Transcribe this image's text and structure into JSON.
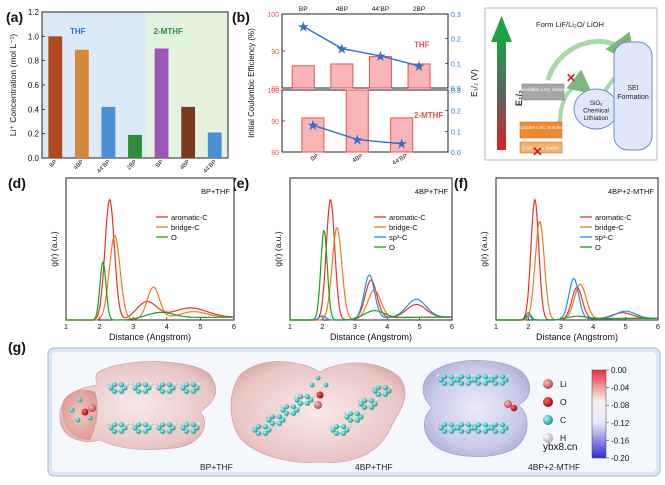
{
  "panel_letters": [
    "(a)",
    "(b)",
    "(c)",
    "(d)",
    "(e)",
    "(f)",
    "(g)"
  ],
  "colors": {
    "brown": "#b04a1e",
    "orange": "#d4883a",
    "blue": "#4a8fd6",
    "green": "#2e8b3a",
    "purple": "#9a57b8",
    "darkbrown": "#7a3a22",
    "red_bar": "#f05050",
    "pink_bar": "#f7a0a0",
    "line_blue": "#2f6fd0",
    "aromatic": "#ee2f2f",
    "bridge": "#f07a1a",
    "sp3": "#1f8fe0",
    "O": "#1aa01a",
    "panel_bg_blue": "#dceaf8",
    "panel_bg_green": "#e4f2e0"
  },
  "chart_data": [
    {
      "id": "a",
      "type": "bar",
      "ylabel": "Li⁺ Concentration (mol L⁻¹)",
      "ylim": [
        0,
        1.2
      ],
      "yticks": [
        "0.0",
        "0.2",
        "0.4",
        "0.6",
        "0.8",
        "1.0",
        "1.2"
      ],
      "groups": [
        {
          "label": "THF"
        },
        {
          "label": "2-MTHF"
        }
      ],
      "categories": [
        "BP",
        "4BP",
        "44’BP",
        "2BP",
        "BP",
        "4BP",
        "44’BP"
      ],
      "values": [
        1.0,
        0.89,
        0.42,
        0.19,
        0.9,
        0.42,
        0.21
      ]
    },
    {
      "id": "b",
      "type": "bar+line",
      "ylabel": "Initial Coulombic Efficiency (%)",
      "y2label": "E₁/₂ (V)",
      "categories_top": [
        "BP",
        "4BP",
        "44’BP",
        "2BP"
      ],
      "categories_bottom": [
        "BP",
        "4BP",
        "44’BP"
      ],
      "top": {
        "label": "THF",
        "ylim": [
          80,
          100
        ],
        "yticks": [
          "80",
          "90",
          "100"
        ],
        "bars": [
          86,
          86.5,
          88.5,
          86.5
        ],
        "y2lim": [
          0,
          0.3
        ],
        "y2ticks": [
          "0.0",
          "0.1",
          "0.2",
          "0.3"
        ],
        "line": [
          0.25,
          0.16,
          0.13,
          0.09
        ]
      },
      "bottom": {
        "label": "2-MTHF",
        "ylim": [
          80,
          100
        ],
        "yticks": [
          "80",
          "90",
          "100"
        ],
        "bars": [
          91,
          102,
          91
        ],
        "y2lim": [
          0,
          0.3
        ],
        "y2ticks": [
          "0.0",
          "0.1",
          "0.2",
          "0.3"
        ],
        "line": [
          0.13,
          0.06,
          0.04
        ]
      }
    },
    {
      "id": "d",
      "type": "line",
      "title": "BP+THF",
      "xlabel": "Distance (Angstrom)",
      "ylabel": "g(r) (a.u.)",
      "xlim": [
        1,
        6
      ],
      "xticks": [
        "1",
        "2",
        "3",
        "4",
        "5",
        "6"
      ],
      "series": [
        {
          "name": "aromatic-C",
          "peaks": [
            [
              2.3,
              25,
              0.14
            ],
            [
              3.4,
              3.5,
              0.3
            ],
            [
              4.7,
              2.0,
              0.5
            ]
          ]
        },
        {
          "name": "bridge-C",
          "peaks": [
            [
              2.45,
              17.5,
              0.16
            ],
            [
              3.6,
              6.5,
              0.18
            ],
            [
              4.8,
              1.2,
              0.4
            ]
          ]
        },
        {
          "name": "O",
          "peaks": [
            [
              2.1,
              12,
              0.09
            ],
            [
              3.8,
              1.2,
              0.4
            ]
          ]
        }
      ]
    },
    {
      "id": "e",
      "type": "line",
      "title": "4BP+THF",
      "xlabel": "Distance (Angstrom)",
      "ylabel": "g(r) (a.u.)",
      "xlim": [
        1,
        6
      ],
      "xticks": [
        "1",
        "2",
        "3",
        "4",
        "5",
        "6"
      ],
      "series": [
        {
          "name": "aromatic-C",
          "peaks": [
            [
              2.25,
              23.5,
              0.13
            ],
            [
              3.5,
              7.5,
              0.18
            ],
            [
              4.9,
              2.5,
              0.3
            ]
          ]
        },
        {
          "name": "bridge-C",
          "peaks": [
            [
              2.45,
              18,
              0.15
            ],
            [
              3.6,
              5.5,
              0.2
            ]
          ]
        },
        {
          "name": "sp³-C",
          "peaks": [
            [
              2.0,
              0.8,
              0.1
            ],
            [
              3.45,
              8.5,
              0.16
            ],
            [
              4.9,
              3.5,
              0.3
            ]
          ]
        },
        {
          "name": "O",
          "peaks": [
            [
              2.05,
              17.5,
              0.1
            ],
            [
              3.6,
              1.5,
              0.3
            ]
          ]
        }
      ]
    },
    {
      "id": "f",
      "type": "line",
      "title": "4BP+2-MTHF",
      "xlabel": "Distance (Angstrom)",
      "ylabel": "g(r) (a.u.)",
      "xlim": [
        1,
        6
      ],
      "xticks": [
        "1",
        "2",
        "3",
        "4",
        "5",
        "6"
      ],
      "series": [
        {
          "name": "aromatic-C",
          "peaks": [
            [
              2.2,
              41.5,
              0.12
            ],
            [
              3.5,
              11,
              0.16
            ],
            [
              4.9,
              2.0,
              0.3
            ]
          ]
        },
        {
          "name": "bridge-C",
          "peaks": [
            [
              2.35,
              34,
              0.14
            ],
            [
              3.6,
              12,
              0.18
            ]
          ]
        },
        {
          "name": "sp³-C",
          "peaks": [
            [
              2.0,
              1.5,
              0.08
            ],
            [
              3.4,
              14,
              0.15
            ],
            [
              5.0,
              2.5,
              0.3
            ]
          ]
        },
        {
          "name": "O",
          "peaks": [
            [
              2.0,
              2.5,
              0.08
            ],
            [
              3.5,
              1.0,
              0.3
            ]
          ]
        }
      ]
    }
  ],
  "diagram_c": {
    "arrow_label": "Form LiF/Li₂O/ LiOH",
    "y_label": "E₁/₂",
    "box_unsuitable": "Unsuitable LAC Solution",
    "box_suitable": "Suitable LAC Solution",
    "box_less_stable": "LAC Less Stable",
    "box_sio": "SiOₓ Chemical Lithiation",
    "box_sei": "SEI Formation"
  },
  "panel_g": {
    "labels": [
      "BP+THF",
      "4BP+THF",
      "4BP+2-MTHF"
    ],
    "legend": [
      "Li",
      "O",
      "C",
      "H"
    ],
    "colorbar_ticks": [
      "0.00",
      "-0.04",
      "-0.08",
      "-0.12",
      "-0.16",
      "-0.20"
    ],
    "watermark": "ybx8.cn"
  }
}
